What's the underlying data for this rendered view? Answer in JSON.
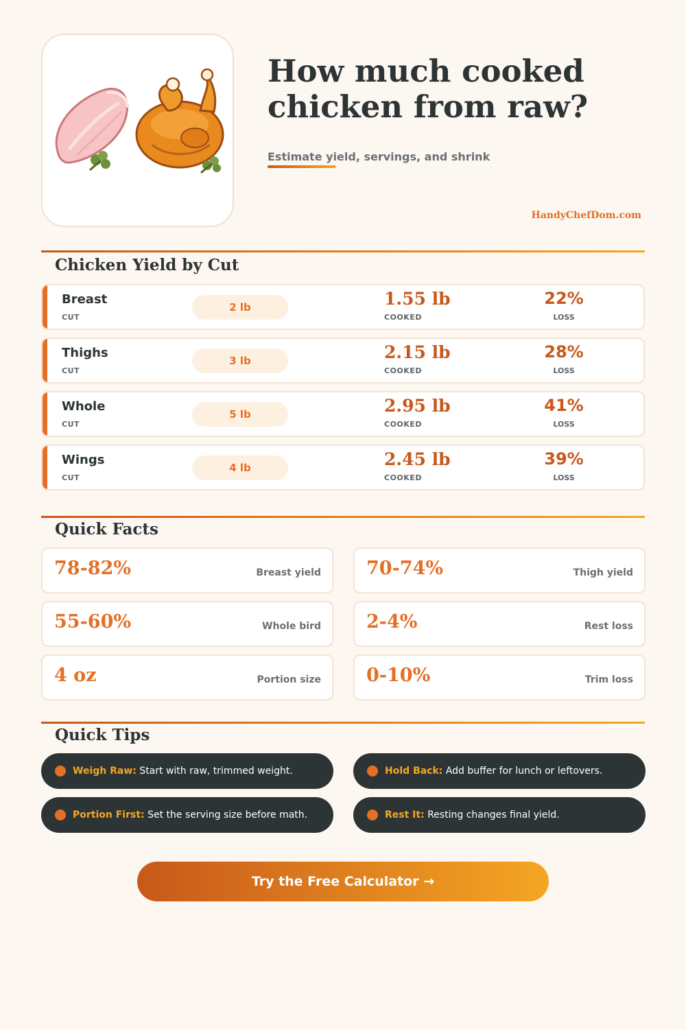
{
  "header": {
    "title": "How much cooked chicken from raw?",
    "subtitle": "Estimate yield, servings, and shrink",
    "brand": "HandyChefDom.com",
    "illustration": [
      "raw-chicken-breast-icon",
      "roast-chicken-icon",
      "parsley-icon"
    ]
  },
  "yield_section": {
    "title": "Chicken Yield by Cut",
    "cut_label": "CUT",
    "cooked_label": "COOKED",
    "loss_label": "LOSS",
    "rows": [
      {
        "cut": "Breast",
        "raw": "2 lb",
        "cooked": "1.55 lb",
        "loss": "22%"
      },
      {
        "cut": "Thighs",
        "raw": "3 lb",
        "cooked": "2.15 lb",
        "loss": "28%"
      },
      {
        "cut": "Whole",
        "raw": "5 lb",
        "cooked": "2.95 lb",
        "loss": "41%"
      },
      {
        "cut": "Wings",
        "raw": "4 lb",
        "cooked": "2.45 lb",
        "loss": "39%"
      }
    ]
  },
  "facts_section": {
    "title": "Quick Facts",
    "items": [
      {
        "value": "78-82%",
        "label": "Breast yield"
      },
      {
        "value": "70-74%",
        "label": "Thigh yield"
      },
      {
        "value": "55-60%",
        "label": "Whole bird"
      },
      {
        "value": "2-4%",
        "label": "Rest loss"
      },
      {
        "value": "4 oz",
        "label": "Portion size"
      },
      {
        "value": "0-10%",
        "label": "Trim loss"
      }
    ]
  },
  "tips_section": {
    "title": "Quick Tips",
    "items": [
      {
        "key": "Weigh Raw:",
        "text": " Start with raw, trimmed weight."
      },
      {
        "key": "Hold Back:",
        "text": " Add buffer for lunch or leftovers."
      },
      {
        "key": "Portion First:",
        "text": " Set the serving size before math."
      },
      {
        "key": "Rest It:",
        "text": " Resting changes final yield."
      }
    ]
  },
  "cta": {
    "label": "Try the Free Calculator →"
  },
  "colors": {
    "accent": "#e56f25",
    "accent_dark": "#c8581a",
    "accent_light": "#f5a623",
    "dark": "#2d3436",
    "background": "#fdf7f1"
  }
}
